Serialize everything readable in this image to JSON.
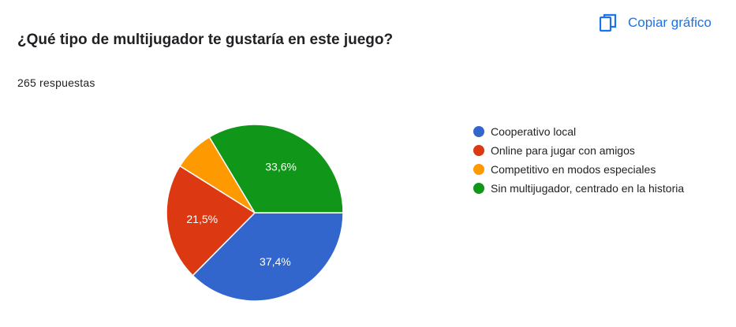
{
  "header": {
    "title": "¿Qué tipo de multijugador te gustaría en este juego?",
    "responses": "265 respuestas",
    "copy_label": "Copiar gráfico",
    "copy_icon": "copy-icon"
  },
  "chart_data": {
    "type": "pie",
    "title": "¿Qué tipo de multijugador te gustaría en este juego?",
    "legend_position": "right",
    "slices": [
      {
        "label": "Cooperativo local",
        "value": 37.4,
        "display": "37,4%",
        "color": "#3366cc"
      },
      {
        "label": "Online para jugar con amigos",
        "value": 21.5,
        "display": "21,5%",
        "color": "#dc3912"
      },
      {
        "label": "Competitivo en modos especiales",
        "value": 7.5,
        "display": "",
        "color": "#ff9900"
      },
      {
        "label": "Sin multijugador, centrado en la historia",
        "value": 33.6,
        "display": "33,6%",
        "color": "#109618"
      }
    ]
  }
}
